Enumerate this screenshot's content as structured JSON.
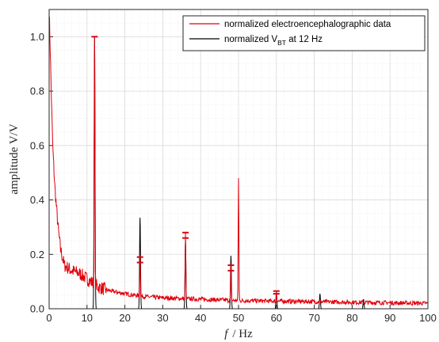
{
  "chart_data": {
    "type": "line",
    "xlabel": {
      "symbol": "f",
      "rest": "/ Hz"
    },
    "ylabel": "amplitude V/V",
    "xlim": [
      0,
      100
    ],
    "ylim": [
      0,
      1.1
    ],
    "xticks": [
      "0",
      "10",
      "20",
      "30",
      "40",
      "50",
      "60",
      "70",
      "80",
      "90",
      "100"
    ],
    "yticks": [
      "0.0",
      "0.2",
      "0.4",
      "0.6",
      "0.8",
      "1.0"
    ],
    "grid": true,
    "legend_position": "top-right",
    "colors": {
      "eeg": "#e0000c",
      "bt": "#000000",
      "grid": "#d9d9d9",
      "axis": "#262626"
    },
    "series": [
      {
        "name": "normalized electroencephalographic data",
        "color": "#e0000c",
        "baseline": [
          [
            0,
            1.1
          ],
          [
            0.3,
            0.95
          ],
          [
            0.7,
            0.72
          ],
          [
            1,
            0.58
          ],
          [
            1.5,
            0.45
          ],
          [
            2,
            0.36
          ],
          [
            2.5,
            0.28
          ],
          [
            3,
            0.22
          ],
          [
            4,
            0.16
          ],
          [
            5,
            0.15
          ],
          [
            6,
            0.14
          ],
          [
            7,
            0.135
          ],
          [
            8,
            0.13
          ],
          [
            9,
            0.12
          ],
          [
            10,
            0.11
          ],
          [
            11,
            0.1
          ],
          [
            13,
            0.08
          ],
          [
            15,
            0.07
          ],
          [
            18,
            0.06
          ],
          [
            20,
            0.055
          ],
          [
            25,
            0.045
          ],
          [
            30,
            0.04
          ],
          [
            40,
            0.035
          ],
          [
            50,
            0.03
          ],
          [
            60,
            0.028
          ],
          [
            70,
            0.026
          ],
          [
            80,
            0.024
          ],
          [
            90,
            0.022
          ],
          [
            100,
            0.02
          ]
        ],
        "peaks": [
          {
            "f": 12,
            "amplitude": 1.0,
            "marker": [
              1.0
            ]
          },
          {
            "f": 24,
            "amplitude": 0.2,
            "marker": [
              0.19,
              0.17
            ]
          },
          {
            "f": 36,
            "amplitude": 0.28,
            "marker": [
              0.28,
              0.26
            ]
          },
          {
            "f": 48,
            "amplitude": 0.16,
            "marker": [
              0.16,
              0.14
            ]
          },
          {
            "f": 50,
            "amplitude": 0.48,
            "marker": []
          },
          {
            "f": 60,
            "amplitude": 0.065,
            "marker": [
              0.065,
              0.055
            ]
          }
        ]
      },
      {
        "name_parts": {
          "pre": "normalized V",
          "sub": "BT",
          "post": " at 12 Hz"
        },
        "color": "#000000",
        "peaks": [
          {
            "f": 12,
            "amplitude": 1.0
          },
          {
            "f": 24,
            "amplitude": 0.335
          },
          {
            "f": 36,
            "amplitude": 0.25
          },
          {
            "f": 48,
            "amplitude": 0.195
          },
          {
            "f": 60,
            "amplitude": 0.06
          },
          {
            "f": 71.5,
            "amplitude": 0.055
          },
          {
            "f": 83,
            "amplitude": 0.035
          }
        ]
      }
    ]
  }
}
